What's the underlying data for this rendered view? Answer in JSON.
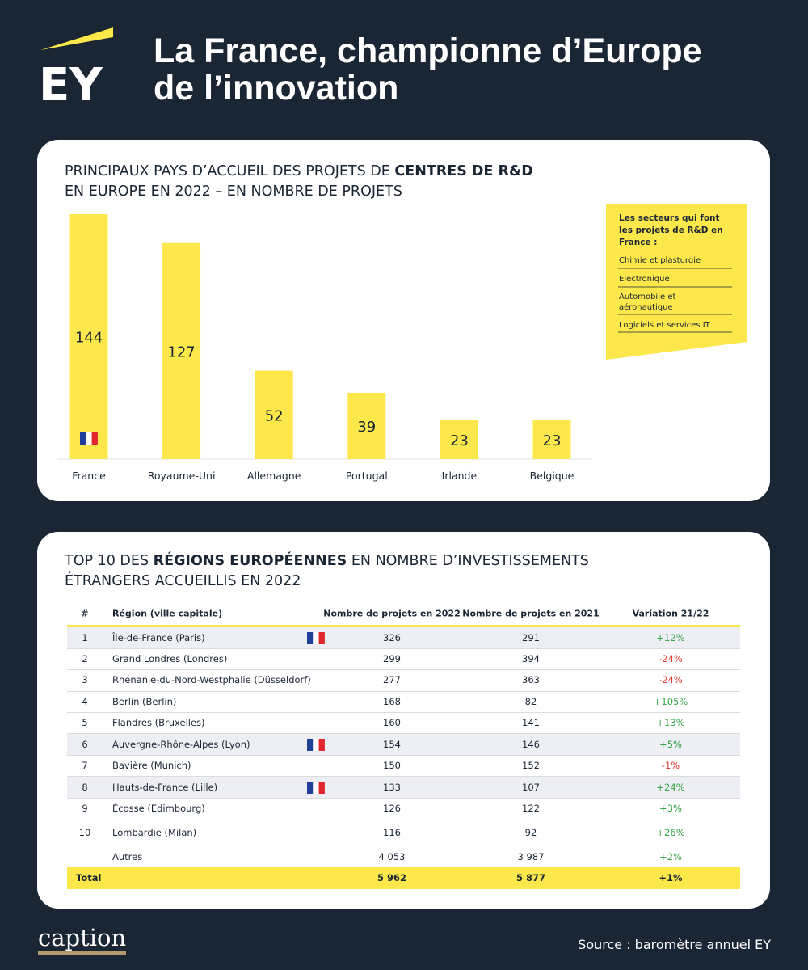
{
  "header": {
    "logo": "EY",
    "title": [
      "La France, championne d’Europe",
      "de l’innovation"
    ]
  },
  "chart_data": {
    "type": "bar",
    "title": [
      "PRINCIPAUX PAYS D’ACCUEIL DES PROJETS DE",
      "CENTRES DE R&D",
      "EN EUROPE EN 2022 – EN NOMBRE DE PROJETS"
    ],
    "categories": [
      "France",
      "Royaume-Uni",
      "Allemagne",
      "Portugal",
      "Irlande",
      "Belgique"
    ],
    "values": [
      144,
      127,
      52,
      39,
      23,
      23
    ],
    "color": "#fde84c"
  },
  "sidebox": {
    "title": "Les secteurs qui font les projets de R&D en France :",
    "items": [
      "Chimie et plasturgie",
      "Electronique",
      "Automobile et aéronautique",
      "Logiciels et services IT"
    ]
  },
  "table": {
    "title": [
      "TOP 10 DES",
      "RÉGIONS EUROPÉENNES",
      "EN NOMBRE D’INVESTISSEMENTS",
      "ÉTRANGERS ACCUEILLIS EN 2022"
    ],
    "columns": [
      "#",
      "Région (ville capitale)",
      "Nombre de projets en 2022",
      "Nombre de projets en 2021",
      "Variation 21/22"
    ],
    "rows": [
      [
        "1",
        "Île-de-France (Paris)",
        "326",
        "291",
        "+12%"
      ],
      [
        "2",
        "Grand Londres (Londres)",
        "299",
        "394",
        "-24%"
      ],
      [
        "3",
        "Rhénanie-du-Nord-Westphalie (Düsseldorf)",
        "277",
        "363",
        "-24%"
      ],
      [
        "4",
        "Berlin (Berlin)",
        "168",
        "82",
        "+105%"
      ],
      [
        "5",
        "Flandres (Bruxelles)",
        "160",
        "141",
        "+13%"
      ],
      [
        "6",
        "Auvergne-Rhône-Alpes (Lyon)",
        "154",
        "146",
        "+5%"
      ],
      [
        "7",
        "Bavière (Munich)",
        "150",
        "152",
        "-1%"
      ],
      [
        "8",
        "Hauts-de-France (Lille)",
        "133",
        "107",
        "+24%"
      ],
      [
        "9",
        "Écosse (Edimbourg)",
        "126",
        "122",
        "+3%"
      ],
      [
        "10",
        "Lombardie (Milan)",
        "116",
        "92",
        "+26%"
      ]
    ],
    "others": [
      "Autres",
      "4 053",
      "3 987",
      "+2%"
    ],
    "total": [
      "Total",
      "5 962",
      "5 877",
      "+1%"
    ]
  },
  "footer": {
    "brand": "caption",
    "source": "Source : baromètre annuel EY"
  }
}
